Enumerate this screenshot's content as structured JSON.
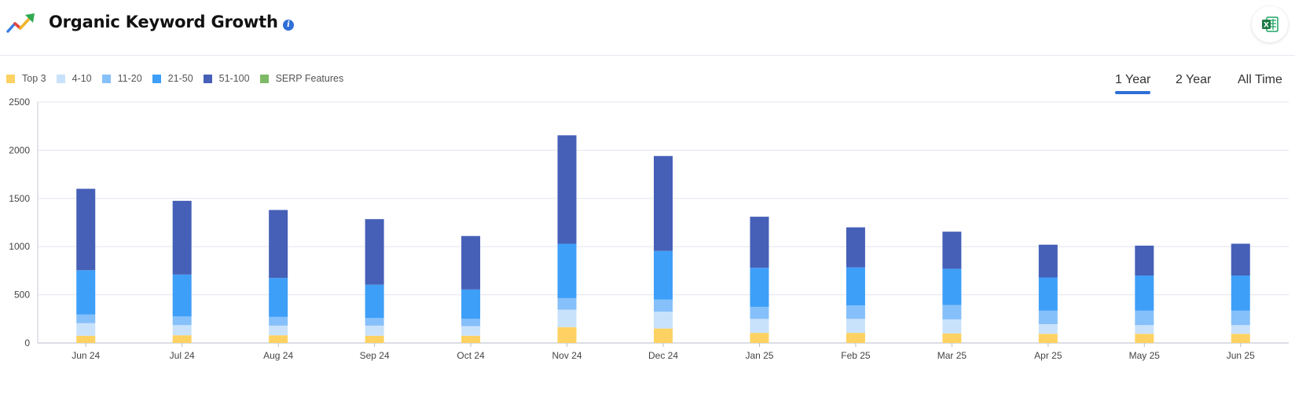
{
  "header": {
    "title": "Organic Keyword Growth",
    "info_icon": "info-icon",
    "export_icon": "excel-icon"
  },
  "legend": [
    {
      "label": "Top 3",
      "color": "#fdd262"
    },
    {
      "label": "4-10",
      "color": "#c9e2fb"
    },
    {
      "label": "11-20",
      "color": "#86c0fa"
    },
    {
      "label": "21-50",
      "color": "#3e9ff8"
    },
    {
      "label": "51-100",
      "color": "#4660b8"
    },
    {
      "label": "SERP Features",
      "color": "#7dba67"
    }
  ],
  "range_tabs": [
    {
      "label": "1 Year",
      "active": true
    },
    {
      "label": "2 Year",
      "active": false
    },
    {
      "label": "All Time",
      "active": false
    }
  ],
  "chart_data": {
    "type": "bar",
    "stacked": true,
    "categories": [
      "Jun 24",
      "Jul 24",
      "Aug 24",
      "Sep 24",
      "Oct 24",
      "Nov 24",
      "Dec 24",
      "Jan 25",
      "Feb 25",
      "Mar 25",
      "Apr 25",
      "May 25",
      "Jun 25"
    ],
    "series": [
      {
        "name": "Top 3",
        "color": "#fdd262",
        "values": [
          75,
          80,
          80,
          75,
          75,
          165,
          150,
          105,
          105,
          100,
          95,
          95,
          95
        ]
      },
      {
        "name": "4-10",
        "color": "#c9e2fb",
        "values": [
          130,
          105,
          100,
          105,
          100,
          180,
          175,
          145,
          145,
          145,
          100,
          90,
          90
        ]
      },
      {
        "name": "11-20",
        "color": "#86c0fa",
        "values": [
          90,
          90,
          90,
          80,
          75,
          120,
          125,
          125,
          140,
          150,
          140,
          150,
          150
        ]
      },
      {
        "name": "21-50",
        "color": "#3e9ff8",
        "values": [
          460,
          435,
          405,
          345,
          305,
          565,
          505,
          405,
          395,
          375,
          345,
          365,
          365
        ]
      },
      {
        "name": "51-100",
        "color": "#4660b8",
        "values": [
          845,
          765,
          705,
          680,
          555,
          1125,
          985,
          530,
          415,
          385,
          340,
          310,
          330
        ]
      },
      {
        "name": "SERP Features",
        "color": "#7dba67",
        "values": [
          0,
          0,
          0,
          0,
          0,
          0,
          0,
          0,
          0,
          0,
          0,
          0,
          0
        ]
      }
    ],
    "yticks": [
      0,
      500,
      1000,
      1500,
      2000,
      2500
    ],
    "ylim": [
      0,
      2500
    ],
    "grid": true,
    "legend_position": "top-left"
  }
}
